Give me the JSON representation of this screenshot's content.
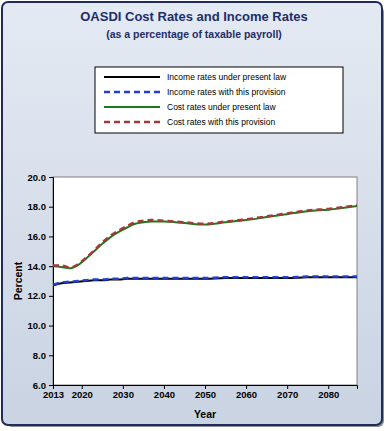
{
  "chart_data": {
    "type": "line",
    "title": "OASDI Cost Rates and Income Rates",
    "subtitle": "(as a percentage of taxable payroll)",
    "x_label": "Year",
    "y_label": "Percent",
    "x": [
      2013,
      2015,
      2017,
      2019,
      2021,
      2023,
      2025,
      2027,
      2029,
      2031,
      2033,
      2035,
      2037,
      2040,
      2045,
      2050,
      2055,
      2060,
      2065,
      2070,
      2075,
      2080,
      2087
    ],
    "series": [
      {
        "name": "Income rates under present law",
        "color": "#000000",
        "line_style": "solid",
        "values": [
          12.7,
          12.85,
          12.9,
          12.95,
          13.0,
          13.05,
          13.05,
          13.1,
          13.1,
          13.15,
          13.15,
          13.15,
          13.15,
          13.15,
          13.15,
          13.15,
          13.2,
          13.2,
          13.2,
          13.2,
          13.25,
          13.25,
          13.25
        ]
      },
      {
        "name": "Income rates with this provision",
        "color": "#1f3fd8",
        "line_style": "dashed",
        "values": [
          12.75,
          12.9,
          12.95,
          13.0,
          13.05,
          13.1,
          13.1,
          13.15,
          13.15,
          13.2,
          13.2,
          13.2,
          13.2,
          13.2,
          13.2,
          13.2,
          13.25,
          13.25,
          13.25,
          13.25,
          13.3,
          13.3,
          13.3
        ]
      },
      {
        "name": "Cost rates under present law",
        "color": "#1a7a1a",
        "line_style": "solid",
        "values": [
          14.0,
          13.95,
          13.85,
          14.05,
          14.5,
          15.0,
          15.5,
          15.95,
          16.3,
          16.6,
          16.85,
          16.95,
          17.0,
          17.0,
          16.9,
          16.8,
          16.95,
          17.1,
          17.3,
          17.5,
          17.7,
          17.8,
          18.05
        ]
      },
      {
        "name": "Cost rates with this provision",
        "color": "#a33a3a",
        "line_style": "dashed",
        "values": [
          14.05,
          14.05,
          13.9,
          14.1,
          14.55,
          15.05,
          15.6,
          16.05,
          16.4,
          16.7,
          16.95,
          17.05,
          17.1,
          17.05,
          16.95,
          16.85,
          17.0,
          17.15,
          17.35,
          17.55,
          17.75,
          17.85,
          18.1
        ]
      }
    ],
    "xlim": [
      2013,
      2087
    ],
    "xticks": [
      2013,
      2020,
      2030,
      2040,
      2050,
      2060,
      2070,
      2080
    ],
    "ylim": [
      6,
      20
    ],
    "yticks": [
      {
        "value": 6,
        "label": "6.0"
      },
      {
        "value": 8,
        "label": "8.0"
      },
      {
        "value": 10,
        "label": "10.0"
      },
      {
        "value": 12,
        "label": "12.0"
      },
      {
        "value": 14,
        "label": "14.0"
      },
      {
        "value": 16,
        "label": "16.0"
      },
      {
        "value": 18,
        "label": "18.0"
      },
      {
        "value": 20,
        "label": "20.0"
      }
    ],
    "grid": false,
    "legend": "top"
  }
}
